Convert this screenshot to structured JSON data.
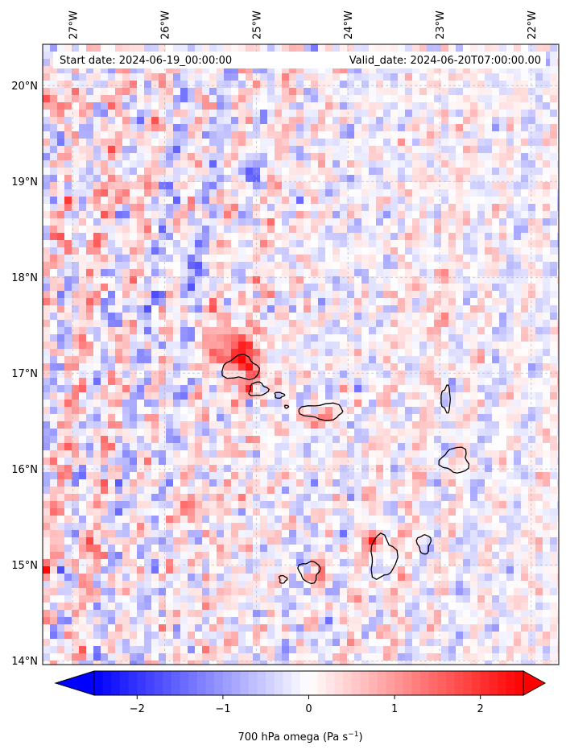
{
  "map": {
    "start_date": "Start date: 2024-06-19_00:00:00",
    "valid_date": "Valid_date: 2024-06-20T07:00:00.00",
    "lon_labels": [
      {
        "lon": -27,
        "text": "27°W"
      },
      {
        "lon": -26,
        "text": "26°W"
      },
      {
        "lon": -25,
        "text": "25°W"
      },
      {
        "lon": -24,
        "text": "24°W"
      },
      {
        "lon": -23,
        "text": "23°W"
      },
      {
        "lon": -22,
        "text": "22°W"
      }
    ],
    "lat_labels": [
      {
        "lat": 20,
        "text": "20°N"
      },
      {
        "lat": 19,
        "text": "19°N"
      },
      {
        "lat": 18,
        "text": "18°N"
      },
      {
        "lat": 17,
        "text": "17°N"
      },
      {
        "lat": 16,
        "text": "16°N"
      },
      {
        "lat": 15,
        "text": "15°N"
      },
      {
        "lat": 14,
        "text": "14°N"
      }
    ],
    "extent": {
      "lon_min": -27.33,
      "lon_max": -21.7,
      "lat_min": 13.96,
      "lat_max": 20.43
    },
    "colors": {
      "negative": "#0000ff",
      "zero": "#ffffff",
      "positive": "#ff0000",
      "coast": "#000000",
      "grid": "#b0b0b0"
    },
    "islands": [
      {
        "name": "Santo Antão",
        "lon": -25.17,
        "lat": 17.05,
        "rx": 0.2,
        "ry": 0.12
      },
      {
        "name": "São Vicente",
        "lon": -24.98,
        "lat": 16.83,
        "rx": 0.1,
        "ry": 0.07
      },
      {
        "name": "Santa Luzia",
        "lon": -24.75,
        "lat": 16.77,
        "rx": 0.05,
        "ry": 0.03
      },
      {
        "name": "Branco",
        "lon": -24.67,
        "lat": 16.65,
        "rx": 0.02,
        "ry": 0.015
      },
      {
        "name": "São Nicolau",
        "lon": -24.28,
        "lat": 16.6,
        "rx": 0.24,
        "ry": 0.08
      },
      {
        "name": "Sal",
        "lon": -22.93,
        "lat": 16.73,
        "rx": 0.05,
        "ry": 0.13
      },
      {
        "name": "Boa Vista",
        "lon": -22.83,
        "lat": 16.09,
        "rx": 0.15,
        "ry": 0.13
      },
      {
        "name": "Maio",
        "lon": -23.17,
        "lat": 15.22,
        "rx": 0.07,
        "ry": 0.1
      },
      {
        "name": "Santiago",
        "lon": -23.62,
        "lat": 15.08,
        "rx": 0.14,
        "ry": 0.22
      },
      {
        "name": "Fogo",
        "lon": -24.42,
        "lat": 14.93,
        "rx": 0.11,
        "ry": 0.11
      },
      {
        "name": "Brava",
        "lon": -24.71,
        "lat": 14.85,
        "rx": 0.04,
        "ry": 0.04
      }
    ]
  },
  "colorbar": {
    "label_main": "700 hPa omega (Pa s",
    "label_exp": "−1",
    "label_close": ")",
    "range": [
      -2.5,
      2.5
    ],
    "ticks": [
      {
        "value": -2,
        "text": "−2"
      },
      {
        "value": -1,
        "text": "−1"
      },
      {
        "value": 0,
        "text": "0"
      },
      {
        "value": 1,
        "text": "1"
      },
      {
        "value": 2,
        "text": "2"
      }
    ]
  }
}
